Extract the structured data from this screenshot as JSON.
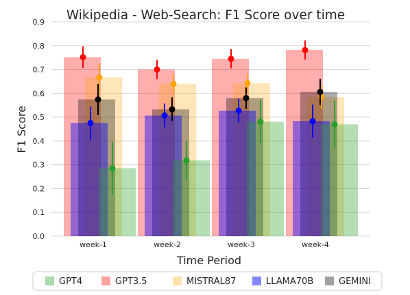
{
  "chart_data": {
    "type": "bar",
    "title": "Wikipedia - Web-Search: F1 Score over time",
    "xlabel": "Time Period",
    "ylabel": "F1 Score",
    "ylim": [
      0,
      0.9
    ],
    "yticks": [
      "0.0",
      "0.1",
      "0.2",
      "0.3",
      "0.4",
      "0.5",
      "0.6",
      "0.7",
      "0.8",
      "0.9"
    ],
    "categories": [
      "week-1",
      "week-2",
      "week-3",
      "week-4"
    ],
    "grid": true,
    "legend_position": "bottom",
    "series": [
      {
        "name": "GPT4",
        "color": "#2ca02c",
        "values": [
          0.285,
          0.318,
          0.481,
          0.47
        ],
        "error": [
          0.11,
          0.08,
          0.09,
          0.1
        ]
      },
      {
        "name": "GPT3.5",
        "color": "#ff0000",
        "values": [
          0.752,
          0.7,
          0.745,
          0.782
        ],
        "error": [
          0.045,
          0.04,
          0.04,
          0.04
        ]
      },
      {
        "name": "MISTRAL87",
        "color": "#ffa500",
        "values": [
          0.667,
          0.64,
          0.643,
          0.585
        ],
        "error": [
          0.06,
          0.04,
          0.04,
          0.05
        ]
      },
      {
        "name": "LLAMA70B",
        "color": "#0000ff",
        "values": [
          0.475,
          0.507,
          0.527,
          0.483
        ],
        "error": [
          0.07,
          0.05,
          0.05,
          0.07
        ]
      },
      {
        "name": "GEMINI",
        "color": "#000000",
        "values": [
          0.574,
          0.533,
          0.58,
          0.606
        ],
        "error": [
          0.065,
          0.05,
          0.045,
          0.055
        ]
      }
    ]
  }
}
